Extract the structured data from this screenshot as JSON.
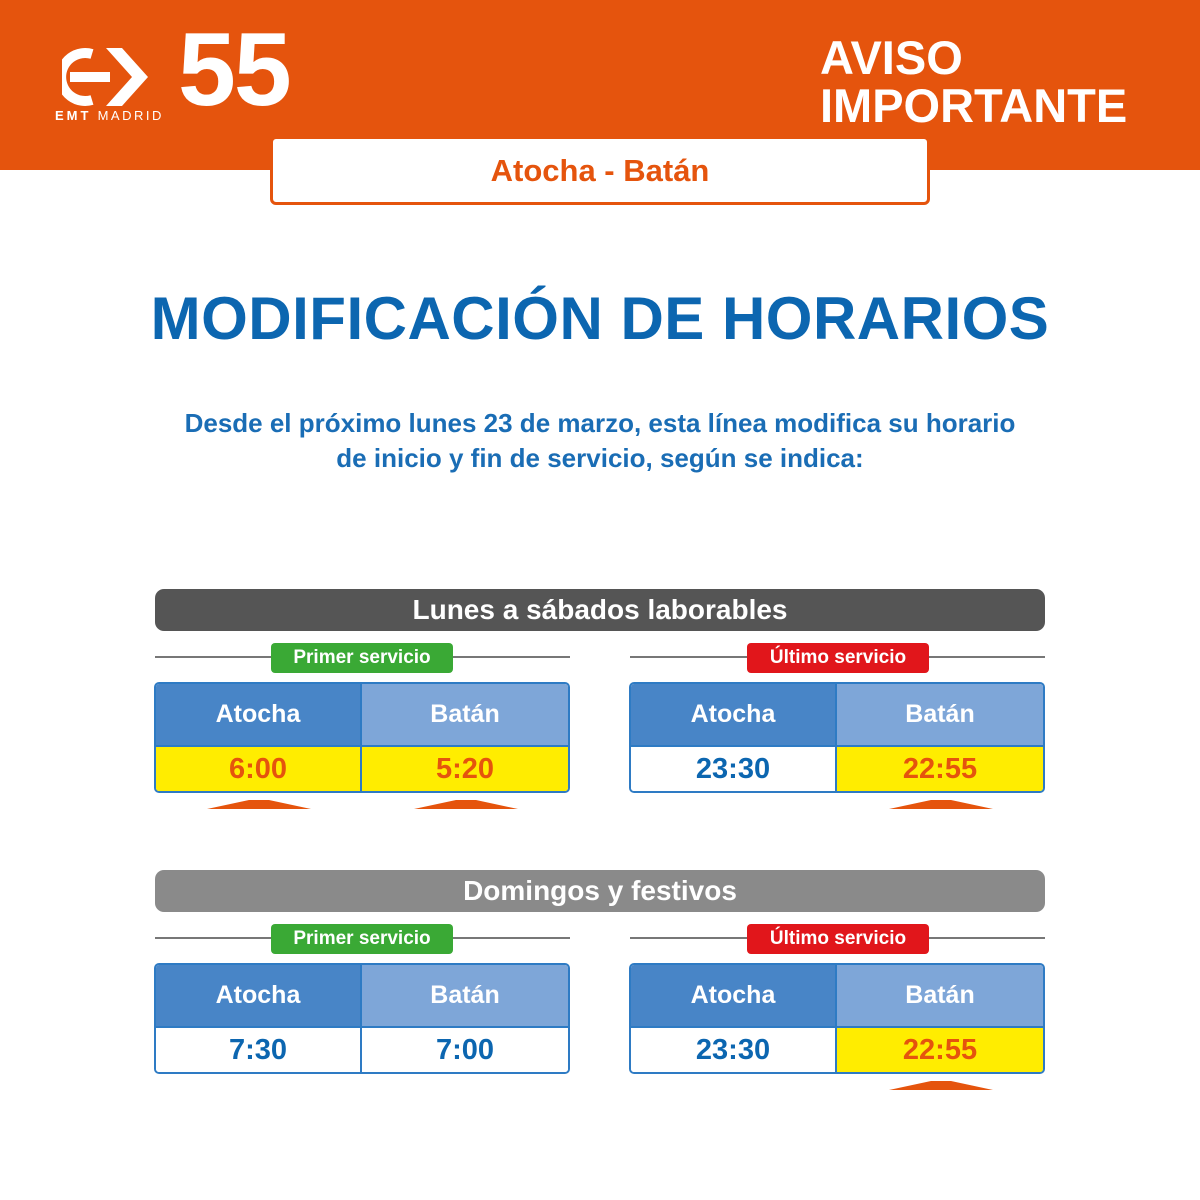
{
  "header": {
    "brand_line1": "EMT",
    "brand_line2": "MADRID",
    "line_number": "55",
    "aviso_line1": "AVISO",
    "aviso_line2": "IMPORTANTE",
    "logo_icon": "emt-arrow-logo-icon"
  },
  "route": "Atocha - Batán",
  "title": "MODIFICACIÓN DE HORARIOS",
  "intro_line1": "Desde el próximo lunes 23 de marzo, esta línea modifica su horario",
  "intro_line2": "de inicio y fin de servicio, según se indica:",
  "colors": {
    "orange": "#e5540d",
    "blue": "#0c66b0",
    "green_tag": "#3aa935",
    "red_tag": "#e1161b",
    "highlight_yellow": "#ffed00"
  },
  "schedules": [
    {
      "label": "Lunes a sábados laborables",
      "first": {
        "tag": "Primer servicio",
        "headers": [
          "Atocha",
          "Batán"
        ],
        "values": [
          "6:00",
          "5:20"
        ],
        "changed": [
          true,
          true
        ]
      },
      "last": {
        "tag": "Último servicio",
        "headers": [
          "Atocha",
          "Batán"
        ],
        "values": [
          "23:30",
          "22:55"
        ],
        "changed": [
          false,
          true
        ]
      }
    },
    {
      "label": "Domingos y festivos",
      "first": {
        "tag": "Primer servicio",
        "headers": [
          "Atocha",
          "Batán"
        ],
        "values": [
          "7:30",
          "7:00"
        ],
        "changed": [
          false,
          false
        ]
      },
      "last": {
        "tag": "Último servicio",
        "headers": [
          "Atocha",
          "Batán"
        ],
        "values": [
          "23:30",
          "22:55"
        ],
        "changed": [
          false,
          true
        ]
      }
    }
  ]
}
